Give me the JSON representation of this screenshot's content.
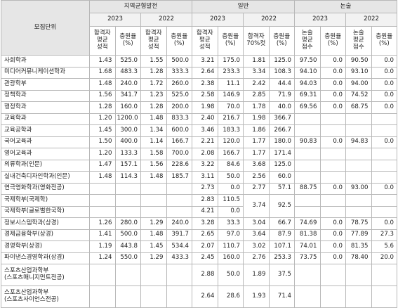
{
  "table": {
    "header": {
      "unit": "모집단위",
      "groups": [
        "지역균형발전",
        "일반",
        "논술"
      ],
      "years": [
        "2023",
        "2022",
        "2023",
        "2022",
        "2023",
        "2022"
      ],
      "columns": [
        "합격자\n평균\n성적",
        "충원율\n(%)",
        "합격자\n평균\n성적",
        "충원율\n(%)",
        "합격자\n평균\n성적",
        "충원율\n(%)",
        "합격자\n70%컷",
        "충원율\n(%)",
        "논술\n평균\n점수",
        "충원율\n(%)",
        "논술\n평균\n점수",
        "충원율\n(%)"
      ]
    },
    "rows": [
      {
        "label": "사회학과",
        "cells": [
          "1.43",
          "525.0",
          "1.55",
          "500.0",
          "3.21",
          "175.0",
          "1.81",
          "125.0",
          "97.50",
          "0.0",
          "90.50",
          "0.0"
        ]
      },
      {
        "label": "미디어커뮤니케이션학과",
        "cells": [
          "1.68",
          "483.3",
          "1.28",
          "333.3",
          "2.64",
          "233.3",
          "3.34",
          "108.3",
          "94.10",
          "0.0",
          "93.10",
          "0.0"
        ]
      },
      {
        "label": "관광학부",
        "cells": [
          "1.48",
          "240.0",
          "1.72",
          "260.0",
          "2.38",
          "11.1",
          "2.42",
          "44.4",
          "94.03",
          "0.0",
          "94.00",
          "0.0"
        ]
      },
      {
        "label": "정책학과",
        "cells": [
          "1.56",
          "341.7",
          "1.23",
          "525.0",
          "2.58",
          "146.9",
          "2.85",
          "71.9",
          "69.31",
          "0.0",
          "74.52",
          "0.0"
        ]
      },
      {
        "label": "행정학과",
        "cells": [
          "1.28",
          "160.0",
          "1.28",
          "200.0",
          "1.98",
          "70.0",
          "1.78",
          "40.0",
          "69.56",
          "0.0",
          "68.75",
          "0.0"
        ]
      },
      {
        "label": "교육학과",
        "cells": [
          "1.20",
          "1200.0",
          "1.48",
          "833.3",
          "2.40",
          "216.7",
          "1.98",
          "366.7",
          null,
          null,
          null,
          null
        ]
      },
      {
        "label": "교육공학과",
        "cells": [
          "1.45",
          "300.0",
          "1.34",
          "600.0",
          "3.46",
          "183.3",
          "1.86",
          "266.7",
          null,
          null,
          null,
          null
        ]
      },
      {
        "label": "국어교육과",
        "cells": [
          "1.50",
          "400.0",
          "1.14",
          "166.7",
          "2.21",
          "120.0",
          "1.77",
          "180.0",
          "90.83",
          "0.0",
          "94.83",
          "0.0"
        ]
      },
      {
        "label": "영어교육과",
        "cells": [
          "1.20",
          "133.3",
          "1.58",
          "700.0",
          "2.08",
          "166.7",
          "1.77",
          "171.4",
          null,
          null,
          null,
          null
        ]
      },
      {
        "label": "의류학과(인문)",
        "cells": [
          "1.47",
          "157.1",
          "1.56",
          "228.6",
          "3.22",
          "84.6",
          "3.68",
          "125.0",
          null,
          null,
          null,
          null
        ]
      },
      {
        "label": "실내건축디자인학과(인문)",
        "cells": [
          "1.48",
          "114.3",
          "1.48",
          "185.7",
          "3.11",
          "50.0",
          "2.56",
          "60.0",
          null,
          null,
          null,
          null
        ]
      },
      {
        "label": "연극영화학과(영화전공)",
        "cells": [
          null,
          null,
          null,
          null,
          "2.73",
          "0.0",
          "2.77",
          "57.1",
          "88.75",
          "0.0",
          "93.00",
          "0.0"
        ]
      },
      {
        "label": "국제학부(국제학)",
        "cells": [
          null,
          null,
          null,
          null,
          "2.83",
          "110.5",
          "3.74",
          "92.5",
          null,
          null,
          null,
          null
        ]
      },
      {
        "label": "국제학부(글로벌한국학)",
        "cells": [
          null,
          null,
          null,
          null,
          "4.21",
          "0.0",
          null,
          null,
          null,
          null,
          null,
          null
        ]
      },
      {
        "label": "정보시스템학과(상경)",
        "cells": [
          "1.26",
          "280.0",
          "1.29",
          "240.0",
          "3.28",
          "33.3",
          "3.04",
          "66.7",
          "74.69",
          "0.0",
          "78.75",
          "0.0"
        ]
      },
      {
        "label": "경제금융학부(상경)",
        "cells": [
          "1.41",
          "500.0",
          "1.48",
          "391.7",
          "2.65",
          "97.0",
          "3.64",
          "87.9",
          "81.38",
          "0.0",
          "77.89",
          "27.3"
        ]
      },
      {
        "label": "경영학부(상경)",
        "cells": [
          "1.19",
          "443.8",
          "1.45",
          "534.4",
          "2.07",
          "110.7",
          "3.02",
          "107.1",
          "74.01",
          "0.0",
          "81.35",
          "5.6"
        ]
      },
      {
        "label": "파이낸스경영학과(상경)",
        "cells": [
          "1.24",
          "550.0",
          "1.29",
          "433.3",
          "2.45",
          "160.0",
          "2.76",
          "253.3",
          "73.75",
          "0.0",
          "78.40",
          "20.0"
        ]
      },
      {
        "label": "스포츠산업과학부\n(스포츠매니지먼트전공)",
        "cells": [
          null,
          null,
          null,
          null,
          "2.88",
          "50.0",
          "1.89",
          "37.5",
          null,
          null,
          null,
          null
        ]
      },
      {
        "label": "스포츠산업과학부\n(스포츠사이언스전공)",
        "cells": [
          null,
          null,
          null,
          null,
          "2.64",
          "28.6",
          "1.93",
          "71.4",
          null,
          null,
          null,
          null
        ]
      }
    ]
  }
}
